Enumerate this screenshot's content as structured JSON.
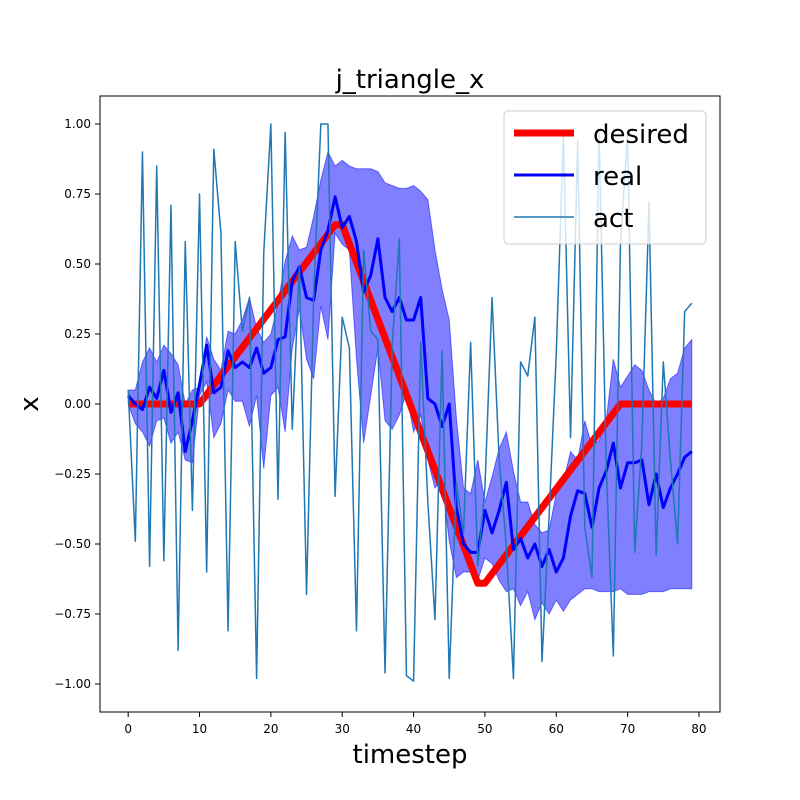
{
  "chart_data": {
    "type": "line",
    "title": "j_triangle_x",
    "xlabel": "timestep",
    "ylabel": "x",
    "xlim": [
      -3.95,
      82.95
    ],
    "ylim": [
      -1.1,
      1.1
    ],
    "xticks": [
      0,
      10,
      20,
      30,
      40,
      50,
      60,
      70,
      80
    ],
    "yticks": [
      -1.0,
      -0.75,
      -0.5,
      -0.25,
      0.0,
      0.25,
      0.5,
      0.75,
      1.0
    ],
    "xtick_labels": [
      "0",
      "10",
      "20",
      "30",
      "40",
      "50",
      "60",
      "70",
      "80"
    ],
    "ytick_labels": [
      "−1.00",
      "−0.75",
      "−0.50",
      "−0.25",
      "0.00",
      "0.25",
      "0.50",
      "0.75",
      "1.00"
    ],
    "legend_position": "upper-right",
    "series": [
      {
        "name": "desired",
        "color": "#ff0000",
        "x": [
          0,
          10,
          29,
          30,
          49,
          50,
          69,
          79
        ],
        "y": [
          0,
          0,
          0.64,
          0.64,
          -0.64,
          -0.64,
          0,
          0
        ]
      },
      {
        "name": "real",
        "color": "#0000ff",
        "x": [
          0,
          1,
          2,
          3,
          4,
          5,
          6,
          7,
          8,
          9,
          10,
          11,
          12,
          13,
          14,
          15,
          16,
          17,
          18,
          19,
          20,
          21,
          22,
          23,
          24,
          25,
          26,
          27,
          28,
          29,
          30,
          31,
          32,
          33,
          34,
          35,
          36,
          37,
          38,
          39,
          40,
          41,
          42,
          43,
          44,
          45,
          46,
          47,
          48,
          49,
          50,
          51,
          52,
          53,
          54,
          55,
          56,
          57,
          58,
          59,
          60,
          61,
          62,
          63,
          64,
          65,
          66,
          67,
          68,
          69,
          70,
          71,
          72,
          73,
          74,
          75,
          76,
          77,
          78,
          79
        ],
        "y": [
          0.03,
          0.0,
          -0.02,
          0.06,
          0.02,
          0.12,
          -0.03,
          0.04,
          -0.17,
          -0.06,
          0.07,
          0.21,
          0.04,
          0.06,
          0.19,
          0.13,
          0.15,
          0.13,
          0.2,
          0.11,
          0.13,
          0.23,
          0.24,
          0.44,
          0.49,
          0.38,
          0.37,
          0.55,
          0.62,
          0.74,
          0.63,
          0.67,
          0.58,
          0.4,
          0.46,
          0.59,
          0.38,
          0.33,
          0.38,
          0.3,
          0.3,
          0.38,
          0.02,
          0.0,
          -0.08,
          0.0,
          -0.37,
          -0.5,
          -0.53,
          -0.53,
          -0.38,
          -0.46,
          -0.38,
          -0.28,
          -0.52,
          -0.48,
          -0.55,
          -0.5,
          -0.58,
          -0.52,
          -0.6,
          -0.55,
          -0.4,
          -0.31,
          -0.32,
          -0.44,
          -0.3,
          -0.24,
          -0.14,
          -0.3,
          -0.21,
          -0.21,
          -0.2,
          -0.36,
          -0.25,
          -0.37,
          -0.3,
          -0.25,
          -0.19,
          -0.17
        ]
      },
      {
        "name": "act",
        "color": "#1f77b4",
        "x": [
          0,
          1,
          2,
          3,
          4,
          5,
          6,
          7,
          8,
          9,
          10,
          11,
          12,
          13,
          14,
          15,
          16,
          17,
          18,
          19,
          20,
          21,
          22,
          23,
          24,
          25,
          26,
          27,
          28,
          29,
          30,
          31,
          32,
          33,
          34,
          35,
          36,
          37,
          38,
          39,
          40,
          41,
          42,
          43,
          44,
          45,
          46,
          47,
          48,
          49,
          50,
          51,
          52,
          53,
          54,
          55,
          56,
          57,
          58,
          59,
          60,
          61,
          62,
          63,
          64,
          65,
          66,
          67,
          68,
          69,
          70,
          71,
          72,
          73,
          74,
          75,
          76,
          77,
          78,
          79
        ],
        "y": [
          0.05,
          -0.49,
          0.9,
          -0.58,
          0.85,
          -0.56,
          0.71,
          -0.88,
          0.58,
          -0.38,
          0.75,
          -0.6,
          0.91,
          0.61,
          -0.81,
          0.58,
          0.26,
          0.38,
          -0.98,
          0.54,
          1.0,
          -0.34,
          0.97,
          -0.09,
          0.49,
          -0.68,
          0.39,
          1.0,
          1.0,
          -0.33,
          0.31,
          0.2,
          -0.81,
          0.55,
          0.26,
          0.23,
          -0.96,
          0.21,
          0.59,
          -0.97,
          -0.99,
          0.22,
          -0.35,
          -0.77,
          0.19,
          -0.98,
          -0.28,
          -0.46,
          0.22,
          -0.58,
          -0.3,
          0.38,
          -0.2,
          -0.51,
          -0.98,
          0.15,
          0.1,
          0.31,
          -0.92,
          -0.4,
          0.18,
          0.96,
          -0.12,
          0.94,
          -0.44,
          -0.62,
          0.97,
          -0.22,
          -0.9,
          0.57,
          0.97,
          -0.53,
          -0.14,
          0.72,
          -0.54,
          0.15,
          -0.2,
          -0.5,
          0.33,
          0.36
        ]
      }
    ],
    "band": {
      "color": "#0000ff",
      "opacity": 0.5,
      "x": [
        0,
        1,
        2,
        3,
        4,
        5,
        6,
        7,
        8,
        9,
        10,
        11,
        12,
        13,
        14,
        15,
        16,
        17,
        18,
        19,
        20,
        21,
        22,
        23,
        24,
        25,
        26,
        27,
        28,
        29,
        30,
        31,
        32,
        33,
        34,
        35,
        36,
        37,
        38,
        39,
        40,
        41,
        42,
        43,
        44,
        45,
        46,
        47,
        48,
        49,
        50,
        51,
        52,
        53,
        54,
        55,
        56,
        57,
        58,
        59,
        60,
        61,
        62,
        63,
        64,
        65,
        66,
        67,
        68,
        69,
        70,
        71,
        72,
        73,
        74,
        75,
        76,
        77,
        78,
        79
      ],
      "upper": [
        0.05,
        0.05,
        0.15,
        0.2,
        0.15,
        0.21,
        0.18,
        0.14,
        0.0,
        0.05,
        0.06,
        0.24,
        0.16,
        0.12,
        0.26,
        0.25,
        0.3,
        0.38,
        0.27,
        0.22,
        0.25,
        0.36,
        0.51,
        0.6,
        0.55,
        0.56,
        0.67,
        0.8,
        0.9,
        0.85,
        0.87,
        0.85,
        0.84,
        0.84,
        0.84,
        0.83,
        0.79,
        0.78,
        0.77,
        0.77,
        0.78,
        0.76,
        0.73,
        0.55,
        0.41,
        0.3,
        -0.05,
        -0.3,
        -0.32,
        -0.2,
        -0.35,
        -0.26,
        -0.16,
        -0.1,
        -0.24,
        -0.35,
        -0.35,
        -0.43,
        -0.46,
        -0.45,
        -0.32,
        -0.28,
        -0.17,
        -0.2,
        -0.06,
        -0.15,
        -0.13,
        -0.06,
        0.16,
        0.06,
        0.1,
        0.14,
        0.12,
        0.05,
        0.0,
        0.02,
        0.09,
        0.11,
        0.2,
        0.23
      ],
      "lower": [
        0.0,
        -0.07,
        -0.1,
        -0.15,
        -0.06,
        -0.05,
        -0.14,
        -0.1,
        -0.2,
        -0.21,
        0.03,
        0.08,
        -0.12,
        -0.07,
        0.05,
        0.01,
        0.01,
        -0.08,
        0.03,
        -0.23,
        0.03,
        0.06,
        -0.1,
        0.2,
        0.34,
        0.16,
        0.09,
        0.35,
        0.23,
        0.61,
        0.57,
        0.55,
        0.16,
        -0.14,
        0.03,
        0.2,
        -0.06,
        -0.09,
        -0.04,
        0.04,
        -0.1,
        -0.04,
        -0.2,
        -0.3,
        -0.27,
        -0.49,
        -0.62,
        -0.6,
        -0.6,
        -0.63,
        -0.55,
        -0.57,
        -0.63,
        -0.67,
        -0.66,
        -0.72,
        -0.67,
        -0.77,
        -0.71,
        -0.75,
        -0.7,
        -0.74,
        -0.7,
        -0.68,
        -0.66,
        -0.66,
        -0.67,
        -0.67,
        -0.67,
        -0.66,
        -0.68,
        -0.68,
        -0.68,
        -0.67,
        -0.67,
        -0.67,
        -0.66,
        -0.66,
        -0.66,
        -0.66
      ]
    }
  }
}
